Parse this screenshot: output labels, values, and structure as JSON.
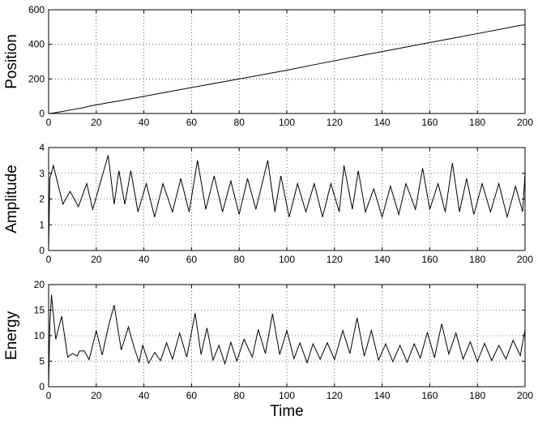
{
  "chart_data": [
    {
      "type": "line",
      "ylabel": "Position",
      "xlabel": "",
      "xlim": [
        0,
        200
      ],
      "ylim": [
        0,
        600
      ],
      "xticks": [
        0,
        20,
        40,
        60,
        80,
        100,
        120,
        140,
        160,
        180,
        200
      ],
      "yticks": [
        0,
        200,
        400,
        600
      ],
      "grid": true,
      "series": [
        {
          "x": [
            0,
            2,
            5,
            10,
            15,
            18,
            20,
            30,
            40,
            50,
            60,
            70,
            80,
            90,
            100,
            110,
            120,
            130,
            140,
            150,
            160,
            170,
            180,
            190,
            198,
            200
          ],
          "values": [
            0,
            3,
            10,
            22,
            35,
            45,
            50,
            74,
            99,
            125,
            150,
            175,
            200,
            225,
            250,
            278,
            305,
            332,
            358,
            384,
            410,
            436,
            462,
            488,
            510,
            512
          ]
        }
      ]
    },
    {
      "type": "line",
      "ylabel": "Amplitude",
      "xlabel": "",
      "xlim": [
        0,
        200
      ],
      "ylim": [
        0,
        4
      ],
      "xticks": [
        0,
        20,
        40,
        60,
        80,
        100,
        120,
        140,
        160,
        180,
        200
      ],
      "yticks": [
        0,
        1,
        2,
        3,
        4
      ],
      "grid": true,
      "series": [
        {
          "x": [
            0,
            0.5,
            2,
            6,
            9,
            12.5,
            16,
            18.5,
            21,
            25,
            27.5,
            29.5,
            32,
            34.5,
            37.5,
            41,
            44.5,
            48,
            52,
            55.5,
            59,
            62.5,
            66,
            69.5,
            73,
            76.5,
            80,
            83.5,
            87,
            92,
            95,
            97.5,
            101,
            104.5,
            108,
            111.5,
            115,
            118.5,
            122,
            124,
            127.5,
            130,
            133,
            136.5,
            140,
            143.5,
            147,
            150,
            154,
            157,
            160,
            163.5,
            166.5,
            169.5,
            172.5,
            175.5,
            178.5,
            182,
            185.5,
            189,
            192.5,
            196,
            199,
            200
          ],
          "values": [
            0,
            2.8,
            3.3,
            1.8,
            2.3,
            1.7,
            2.6,
            1.6,
            2.4,
            3.7,
            1.8,
            3.1,
            1.8,
            3.1,
            1.5,
            2.6,
            1.3,
            2.6,
            1.5,
            2.8,
            1.5,
            3.5,
            1.6,
            2.9,
            1.5,
            2.7,
            1.4,
            2.8,
            1.6,
            3.5,
            1.5,
            2.9,
            1.3,
            2.6,
            1.5,
            2.6,
            1.3,
            2.6,
            1.5,
            3.3,
            1.6,
            3.1,
            1.5,
            2.4,
            1.3,
            2.5,
            1.4,
            2.6,
            1.6,
            3.2,
            1.6,
            2.6,
            1.5,
            3.4,
            1.5,
            2.8,
            1.4,
            2.6,
            1.5,
            2.6,
            1.3,
            2.5,
            1.5,
            3.0
          ]
        }
      ]
    },
    {
      "type": "line",
      "ylabel": "Energy",
      "xlabel": "Time",
      "xlim": [
        0,
        200
      ],
      "ylim": [
        0,
        20
      ],
      "xticks": [
        0,
        20,
        40,
        60,
        80,
        100,
        120,
        140,
        160,
        180,
        200
      ],
      "yticks": [
        0,
        5,
        10,
        15,
        20
      ],
      "grid": true,
      "series": [
        {
          "x": [
            0,
            0.5,
            1.2,
            3,
            5.5,
            8,
            10,
            12,
            13,
            15,
            17,
            20,
            22.5,
            25,
            27.5,
            30.5,
            33.5,
            36,
            38,
            39.5,
            42,
            44.5,
            47,
            49.5,
            52,
            55,
            58,
            61.5,
            64,
            66.5,
            69,
            71.5,
            74,
            76.5,
            79,
            82,
            85.5,
            88,
            91,
            94,
            97,
            100,
            103,
            105.5,
            108.5,
            111,
            114,
            117,
            120,
            123.5,
            126.5,
            129.5,
            132.5,
            135.5,
            138.5,
            141.5,
            144.5,
            147.5,
            150.5,
            153.5,
            156,
            159,
            162,
            165,
            168,
            171,
            174,
            177,
            180,
            183,
            186,
            189,
            192,
            195,
            198,
            200
          ],
          "values": [
            0,
            12,
            18,
            9.3,
            13.8,
            5.8,
            6.5,
            6.0,
            7.0,
            7.0,
            5.3,
            11.0,
            6.2,
            11.6,
            16.0,
            7.2,
            11.7,
            7.5,
            4.8,
            8.1,
            4.6,
            6.7,
            5.1,
            8.6,
            5.4,
            10.5,
            5.8,
            14.4,
            6.3,
            11.5,
            5.2,
            8.1,
            4.5,
            8.7,
            5.0,
            9.3,
            5.8,
            11.2,
            6.5,
            14.3,
            6.3,
            11.0,
            5.5,
            8.6,
            4.7,
            8.4,
            5.4,
            8.6,
            5.3,
            11.0,
            6.5,
            13.5,
            6.0,
            11.0,
            5.2,
            8.4,
            4.9,
            8.1,
            4.8,
            8.4,
            5.6,
            10.6,
            5.7,
            12.3,
            6.4,
            10.5,
            5.4,
            8.8,
            4.9,
            8.5,
            5.1,
            8.1,
            5.4,
            9.1,
            6.1,
            11.1
          ]
        }
      ]
    }
  ]
}
